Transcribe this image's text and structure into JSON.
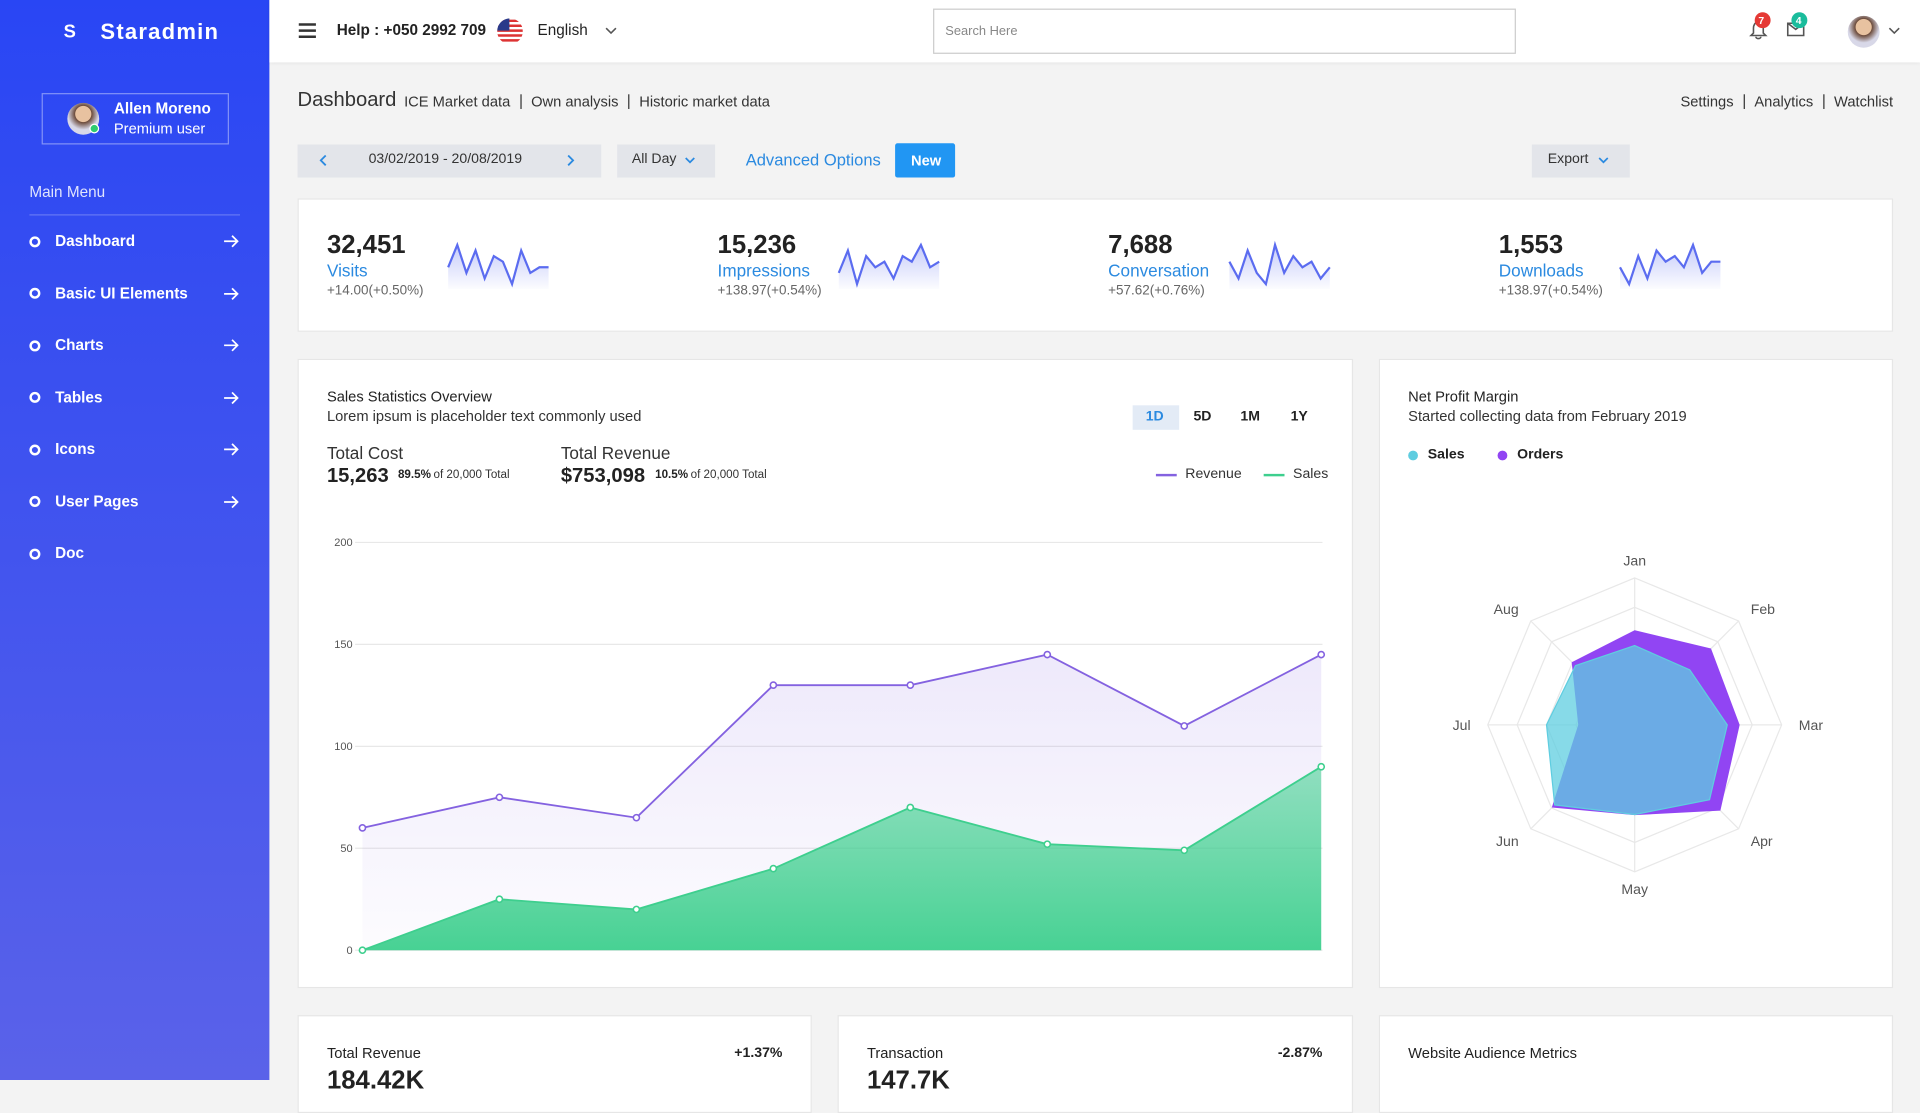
{
  "sidebar": {
    "logo": "S",
    "brand": "Staradmin",
    "user_name": "Allen Moreno",
    "user_role": "Premium user",
    "menu_title": "Main Menu",
    "menu": [
      "Dashboard",
      "Basic UI Elements",
      "Charts",
      "Tables",
      "Icons",
      "User Pages",
      "Doc"
    ]
  },
  "topbar": {
    "help": "Help : +050 2992 709",
    "language": "English",
    "search_placeholder": "Search Here",
    "notifications": "7",
    "messages": "4"
  },
  "header": {
    "title": "Dashboard",
    "links": [
      "ICE Market data",
      "Own analysis",
      "Historic market data"
    ],
    "right_links": [
      "Settings",
      "Analytics",
      "Watchlist"
    ]
  },
  "toolbar": {
    "date_range": "03/02/2019 - 20/08/2019",
    "period": "All Day",
    "advanced": "Advanced Options",
    "new": "New",
    "export": "Export"
  },
  "stats": [
    {
      "value": "32,451",
      "label": "Visits",
      "change": "+14.00(+0.50%)"
    },
    {
      "value": "15,236",
      "label": "Impressions",
      "change": "+138.97(+0.54%)"
    },
    {
      "value": "7,688",
      "label": "Conversation",
      "change": "+57.62(+0.76%)"
    },
    {
      "value": "1,553",
      "label": "Downloads",
      "change": "+138.97(+0.54%)"
    }
  ],
  "sales": {
    "title": "Sales Statistics Overview",
    "subtitle": "Lorem ipsum is placeholder text commonly used",
    "ranges": [
      "1D",
      "5D",
      "1M",
      "1Y"
    ],
    "total_cost": {
      "label": "Total Cost",
      "value": "15,263",
      "percent": "89.5%",
      "note": "of 20,000 Total"
    },
    "total_revenue": {
      "label": "Total Revenue",
      "value": "$753,098",
      "percent": "10.5%",
      "note": "of 20,000 Total"
    }
  },
  "profit": {
    "title": "Net Profit Margin",
    "subtitle": "Started collecting data from February 2019"
  },
  "bottom": [
    {
      "title": "Total Revenue",
      "change": "+1.37%",
      "value": "184.42K"
    },
    {
      "title": "Transaction",
      "change": "-2.87%",
      "value": "147.7K"
    },
    {
      "title": "Website Audience Metrics"
    }
  ],
  "chart_data": [
    {
      "type": "line",
      "categories": [
        null,
        null,
        null,
        null,
        null,
        null,
        null,
        null
      ],
      "series": [
        {
          "name": "Revenue",
          "color": "#8462e0",
          "values": [
            60,
            75,
            65,
            130,
            130,
            145,
            110,
            145
          ]
        },
        {
          "name": "Sales",
          "color": "#3ecf8e",
          "values": [
            0,
            25,
            20,
            40,
            70,
            52,
            49,
            90
          ]
        }
      ],
      "ylim": [
        0,
        200
      ],
      "yticks": [
        0,
        50,
        100,
        150,
        200
      ],
      "grid": true,
      "legend": "top-right"
    },
    {
      "type": "radar",
      "categories": [
        "Jan",
        "Feb",
        "Mar",
        "Apr",
        "May",
        "Jun",
        "Jul",
        "Aug"
      ],
      "series": [
        {
          "name": "Sales",
          "color": "#5fcde0",
          "values": [
            54,
            53,
            63,
            72,
            61,
            77,
            60,
            57
          ]
        },
        {
          "name": "Orders",
          "color": "#9145f3",
          "values": [
            64,
            73,
            71,
            82,
            61,
            79,
            38,
            60
          ]
        }
      ],
      "rlim": [
        0,
        100
      ]
    },
    {
      "type": "sparkline",
      "color": "#5b6cf0",
      "values": [
        5,
        9,
        4,
        8,
        3,
        7,
        6,
        2,
        8,
        4,
        5,
        5
      ]
    },
    {
      "type": "sparkline",
      "color": "#5b6cf0",
      "values": [
        4,
        8,
        2,
        7,
        5,
        6,
        3,
        7,
        6,
        9,
        5,
        6
      ]
    },
    {
      "type": "sparkline",
      "color": "#5b6cf0",
      "values": [
        6,
        3,
        8,
        4,
        2,
        9,
        4,
        7,
        5,
        6,
        3,
        5
      ]
    },
    {
      "type": "sparkline",
      "color": "#5b6cf0",
      "values": [
        5,
        2,
        7,
        3,
        8,
        6,
        7,
        5,
        9,
        4,
        6,
        6
      ]
    }
  ]
}
